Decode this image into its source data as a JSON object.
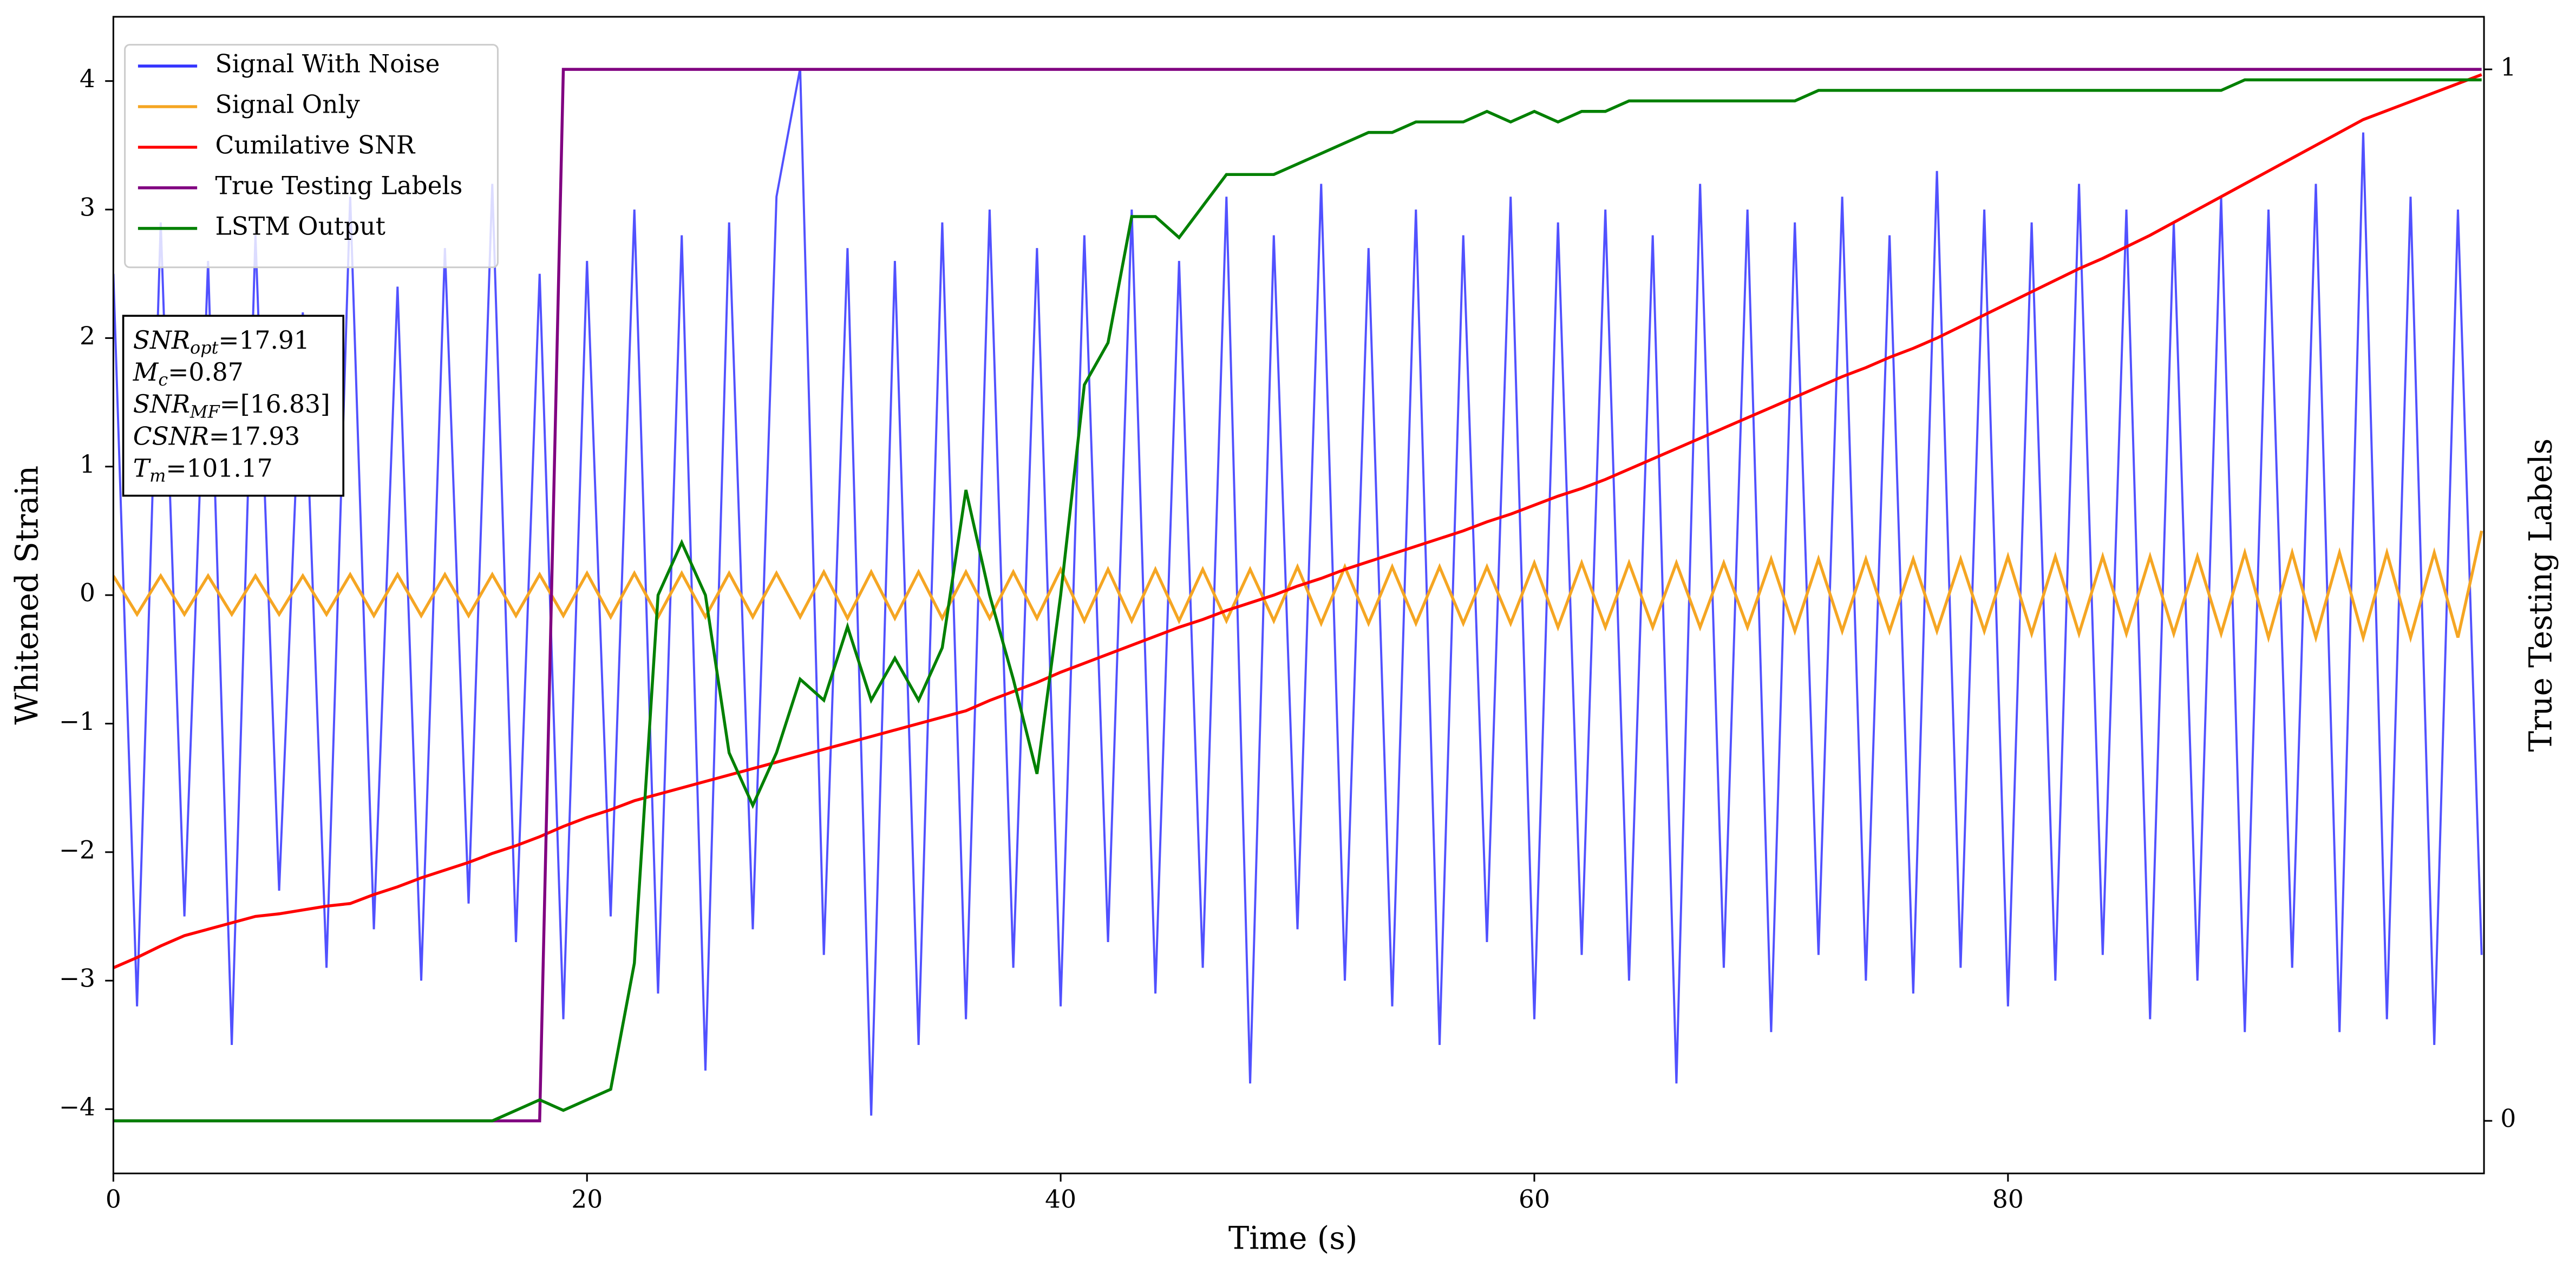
{
  "chart_data": {
    "type": "line",
    "x": [
      0,
      1,
      2,
      3,
      4,
      5,
      6,
      7,
      8,
      9,
      10,
      11,
      12,
      13,
      14,
      15,
      16,
      17,
      18,
      19,
      20,
      21,
      22,
      23,
      24,
      25,
      26,
      27,
      28,
      29,
      30,
      31,
      32,
      33,
      34,
      35,
      36,
      37,
      38,
      39,
      40,
      41,
      42,
      43,
      44,
      45,
      46,
      47,
      48,
      49,
      50,
      51,
      52,
      53,
      54,
      55,
      56,
      57,
      58,
      59,
      60,
      61,
      62,
      63,
      64,
      65,
      66,
      67,
      68,
      69,
      70,
      71,
      72,
      73,
      74,
      75,
      76,
      77,
      78,
      79,
      80,
      81,
      82,
      83,
      84,
      85,
      86,
      87,
      88,
      89,
      90,
      91,
      92,
      93,
      94,
      95,
      96,
      97,
      98,
      99,
      100
    ],
    "series": [
      {
        "name": "Signal With Noise",
        "color": "#3333ff",
        "values": [
          2.5,
          -3.2,
          2.9,
          -2.5,
          2.6,
          -3.5,
          2.8,
          -2.3,
          2.2,
          -2.9,
          3.1,
          -2.6,
          2.4,
          -3.0,
          2.7,
          -2.4,
          3.2,
          -2.7,
          2.5,
          -3.3,
          2.6,
          -2.5,
          3.0,
          -3.1,
          2.8,
          -3.7,
          2.9,
          -2.6,
          3.1,
          4.1,
          -2.8,
          2.7,
          -4.05,
          2.6,
          -3.5,
          2.9,
          -3.3,
          3.0,
          -2.9,
          2.7,
          -3.2,
          2.8,
          -2.7,
          3.0,
          -3.1,
          2.6,
          -2.9,
          3.1,
          -3.8,
          2.8,
          -2.6,
          3.2,
          -3.0,
          2.7,
          -3.2,
          3.0,
          -3.5,
          2.8,
          -2.7,
          3.1,
          -3.3,
          2.9,
          -2.8,
          3.0,
          -3.0,
          2.8,
          -3.8,
          3.2,
          -2.9,
          3.0,
          -3.4,
          2.9,
          -2.8,
          3.1,
          -3.0,
          2.8,
          -3.1,
          3.3,
          -2.9,
          3.0,
          -3.2,
          2.9,
          -3.0,
          3.2,
          -2.8,
          3.0,
          -3.3,
          2.9,
          -3.0,
          3.1,
          -3.4,
          3.0,
          -2.9,
          3.2,
          -3.4,
          3.6,
          -3.3,
          3.1,
          -3.5,
          3.0,
          -2.8
        ]
      },
      {
        "name": "Signal Only",
        "color": "#f5a623",
        "values": [
          0.15,
          -0.15,
          0.15,
          -0.15,
          0.15,
          -0.15,
          0.15,
          -0.15,
          0.15,
          -0.15,
          0.16,
          -0.16,
          0.16,
          -0.16,
          0.16,
          -0.16,
          0.16,
          -0.16,
          0.16,
          -0.16,
          0.17,
          -0.17,
          0.17,
          -0.17,
          0.17,
          -0.17,
          0.17,
          -0.17,
          0.17,
          -0.17,
          0.18,
          -0.18,
          0.18,
          -0.18,
          0.18,
          -0.18,
          0.18,
          -0.18,
          0.18,
          -0.18,
          0.2,
          -0.2,
          0.2,
          -0.2,
          0.2,
          -0.2,
          0.2,
          -0.2,
          0.2,
          -0.2,
          0.22,
          -0.22,
          0.22,
          -0.22,
          0.22,
          -0.22,
          0.22,
          -0.22,
          0.22,
          -0.22,
          0.25,
          -0.25,
          0.25,
          -0.25,
          0.25,
          -0.25,
          0.25,
          -0.25,
          0.25,
          -0.25,
          0.28,
          -0.28,
          0.28,
          -0.28,
          0.28,
          -0.28,
          0.28,
          -0.28,
          0.28,
          -0.28,
          0.3,
          -0.3,
          0.3,
          -0.3,
          0.3,
          -0.3,
          0.3,
          -0.3,
          0.3,
          -0.3,
          0.33,
          -0.33,
          0.33,
          -0.33,
          0.33,
          -0.33,
          0.33,
          -0.33,
          0.33,
          -0.33,
          0.5
        ]
      },
      {
        "name": "Cumilative SNR",
        "color": "#ff0000",
        "values": [
          -2.9,
          -2.82,
          -2.73,
          -2.65,
          -2.6,
          -2.55,
          -2.5,
          -2.48,
          -2.45,
          -2.42,
          -2.4,
          -2.33,
          -2.27,
          -2.2,
          -2.14,
          -2.08,
          -2.01,
          -1.95,
          -1.88,
          -1.8,
          -1.73,
          -1.67,
          -1.6,
          -1.55,
          -1.5,
          -1.45,
          -1.4,
          -1.35,
          -1.3,
          -1.25,
          -1.2,
          -1.15,
          -1.1,
          -1.05,
          -1.0,
          -0.95,
          -0.9,
          -0.82,
          -0.75,
          -0.68,
          -0.6,
          -0.53,
          -0.46,
          -0.39,
          -0.32,
          -0.25,
          -0.19,
          -0.12,
          -0.06,
          0.0,
          0.07,
          0.13,
          0.2,
          0.26,
          0.32,
          0.38,
          0.44,
          0.5,
          0.57,
          0.63,
          0.7,
          0.77,
          0.83,
          0.9,
          0.98,
          1.06,
          1.14,
          1.22,
          1.3,
          1.38,
          1.46,
          1.54,
          1.62,
          1.7,
          1.77,
          1.85,
          1.92,
          2.0,
          2.09,
          2.18,
          2.27,
          2.36,
          2.45,
          2.54,
          2.62,
          2.71,
          2.8,
          2.9,
          3.0,
          3.1,
          3.2,
          3.3,
          3.4,
          3.5,
          3.6,
          3.7,
          3.77,
          3.84,
          3.91,
          3.98,
          4.05
        ]
      },
      {
        "name": "True Testing Labels",
        "color": "#800080",
        "axis": "y2",
        "values": [
          0,
          0,
          0,
          0,
          0,
          0,
          0,
          0,
          0,
          0,
          0,
          0,
          0,
          0,
          0,
          0,
          0,
          0,
          0,
          1,
          1,
          1,
          1,
          1,
          1,
          1,
          1,
          1,
          1,
          1,
          1,
          1,
          1,
          1,
          1,
          1,
          1,
          1,
          1,
          1,
          1,
          1,
          1,
          1,
          1,
          1,
          1,
          1,
          1,
          1,
          1,
          1,
          1,
          1,
          1,
          1,
          1,
          1,
          1,
          1,
          1,
          1,
          1,
          1,
          1,
          1,
          1,
          1,
          1,
          1,
          1,
          1,
          1,
          1,
          1,
          1,
          1,
          1,
          1,
          1,
          1,
          1,
          1,
          1,
          1,
          1,
          1,
          1,
          1,
          1,
          1,
          1,
          1,
          1,
          1,
          1,
          1,
          1,
          1,
          1,
          1
        ]
      },
      {
        "name": "LSTM Output",
        "color": "#008000",
        "axis": "y2",
        "values": [
          0,
          0,
          0,
          0,
          0,
          0,
          0,
          0,
          0,
          0,
          0,
          0,
          0,
          0,
          0,
          0,
          0,
          0.01,
          0.02,
          0.01,
          0.02,
          0.03,
          0.15,
          0.5,
          0.55,
          0.5,
          0.35,
          0.3,
          0.35,
          0.42,
          0.4,
          0.47,
          0.4,
          0.44,
          0.4,
          0.45,
          0.6,
          0.5,
          0.42,
          0.33,
          0.5,
          0.7,
          0.74,
          0.86,
          0.86,
          0.84,
          0.87,
          0.9,
          0.9,
          0.9,
          0.91,
          0.92,
          0.93,
          0.94,
          0.94,
          0.95,
          0.95,
          0.95,
          0.96,
          0.95,
          0.96,
          0.95,
          0.96,
          0.96,
          0.97,
          0.97,
          0.97,
          0.97,
          0.97,
          0.97,
          0.97,
          0.97,
          0.98,
          0.98,
          0.98,
          0.98,
          0.98,
          0.98,
          0.98,
          0.98,
          0.98,
          0.98,
          0.98,
          0.98,
          0.98,
          0.98,
          0.98,
          0.98,
          0.98,
          0.98,
          0.99,
          0.99,
          0.99,
          0.99,
          0.99,
          0.99,
          0.99,
          0.99,
          0.99,
          0.99,
          0.99
        ]
      }
    ],
    "xlabel": "Time (s)",
    "ylabel": "Whitened Strain",
    "y2label": "True Testing Labels",
    "xlim": [
      0,
      100.1
    ],
    "xticks": [
      0,
      20,
      40,
      60,
      80
    ],
    "ylim": [
      -4.5,
      4.5
    ],
    "yticks": [
      {
        "value": -4,
        "label": "−4"
      },
      {
        "value": -3,
        "label": "−3"
      },
      {
        "value": -2,
        "label": "−2"
      },
      {
        "value": -1,
        "label": "−1"
      },
      0,
      1,
      2,
      3,
      4
    ],
    "y2lim": [
      -0.05,
      1.05
    ],
    "y2ticks": [
      0,
      1
    ],
    "legend": "upper left",
    "annotation": [
      {
        "main": "SNR",
        "sub": "opt",
        "rest": "=17.91"
      },
      {
        "main": "M",
        "sub": "c",
        "rest": "=0.87"
      },
      {
        "main": "SNR",
        "sub": "MF",
        "rest": "=[16.83]"
      },
      {
        "main": "CSNR",
        "rest": "=17.93"
      },
      {
        "main": "T",
        "sub": "m",
        "rest": "=101.17"
      }
    ]
  }
}
